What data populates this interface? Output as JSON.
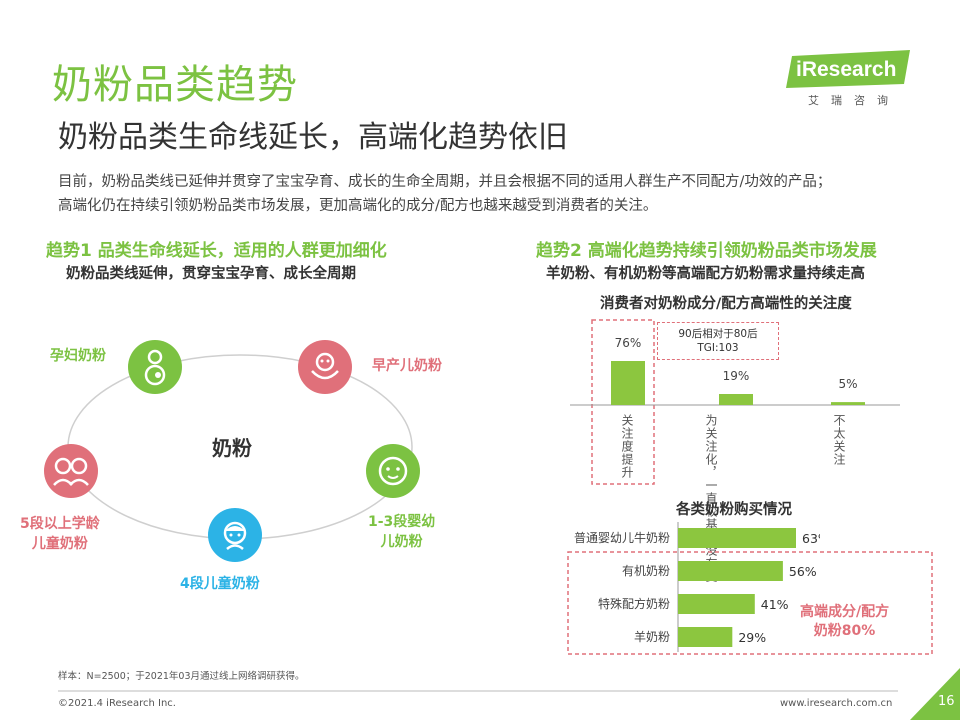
{
  "header": {
    "title": "奶粉品类趋势",
    "subtitle": "奶粉品类生命线延长，高端化趋势依旧",
    "intro_line1": "目前，奶粉品类线已延伸并贯穿了宝宝孕育、成长的生命全周期，并且会根据不同的适用人群生产不同配方/功效的产品；",
    "intro_line2": "高端化仍在持续引领奶粉品类市场发展，更加高端化的成分/配方也越来越受到消费者的关注。"
  },
  "logo": {
    "text": "iResearch",
    "sub": "艾瑞咨询"
  },
  "trend1": {
    "heading": "趋势1 品类生命线延长，适用的人群更加细化",
    "sub": "奶粉品类线延伸，贯穿宝宝孕育、成长全周期",
    "center": "奶粉",
    "nodes": [
      {
        "label": "孕妇奶粉",
        "color": "#7cc242"
      },
      {
        "label": "早产儿奶粉",
        "color": "#e0707a"
      },
      {
        "label_line1": "1-3段婴幼",
        "label_line2": "儿奶粉",
        "color": "#7cc242"
      },
      {
        "label": "4段儿童奶粉",
        "color": "#2cb3e6"
      },
      {
        "label_line1": "5段以上学龄",
        "label_line2": "儿童奶粉",
        "color": "#e0707a"
      }
    ]
  },
  "trend2": {
    "heading": "趋势2 高端化趋势持续引领奶粉品类市场发展",
    "sub": "羊奶粉、有机奶粉等高端配方奶粉需求量持续走高",
    "tgi_line1": "90后相对于80后",
    "tgi_line2": "TGI:103",
    "highlight_line1": "高端成分/配方",
    "highlight_line2": "奶粉80%"
  },
  "chart_data": [
    {
      "type": "bar",
      "title": "消费者对奶粉成分/配方高端性的关注度",
      "categories": [
        "关注度提升",
        "为关注化，一直较基本没有变",
        "不太关注"
      ],
      "values": [
        76,
        19,
        5
      ],
      "value_labels": [
        "76%",
        "19%",
        "5%"
      ],
      "ylim": [
        0,
        100
      ],
      "color": "#8cc63f"
    },
    {
      "type": "bar",
      "orientation": "horizontal",
      "title": "各类奶粉购买情况",
      "categories": [
        "普通婴幼儿牛奶粉",
        "有机奶粉",
        "特殊配方奶粉",
        "羊奶粉"
      ],
      "values": [
        63,
        56,
        41,
        29
      ],
      "value_labels": [
        "63%",
        "56%",
        "41%",
        "29%"
      ],
      "xlim": [
        0,
        100
      ],
      "color": "#8cc63f"
    }
  ],
  "footer": {
    "note": "样本：N=2500；于2021年03月通过线上网络调研获得。",
    "copyright": "©2021.4 iResearch Inc.",
    "url": "www.iresearch.com.cn",
    "page": "16"
  },
  "colors": {
    "green": "#7cc242",
    "pink": "#e0707a",
    "blue": "#2cb3e6",
    "bar": "#8cc63f"
  }
}
